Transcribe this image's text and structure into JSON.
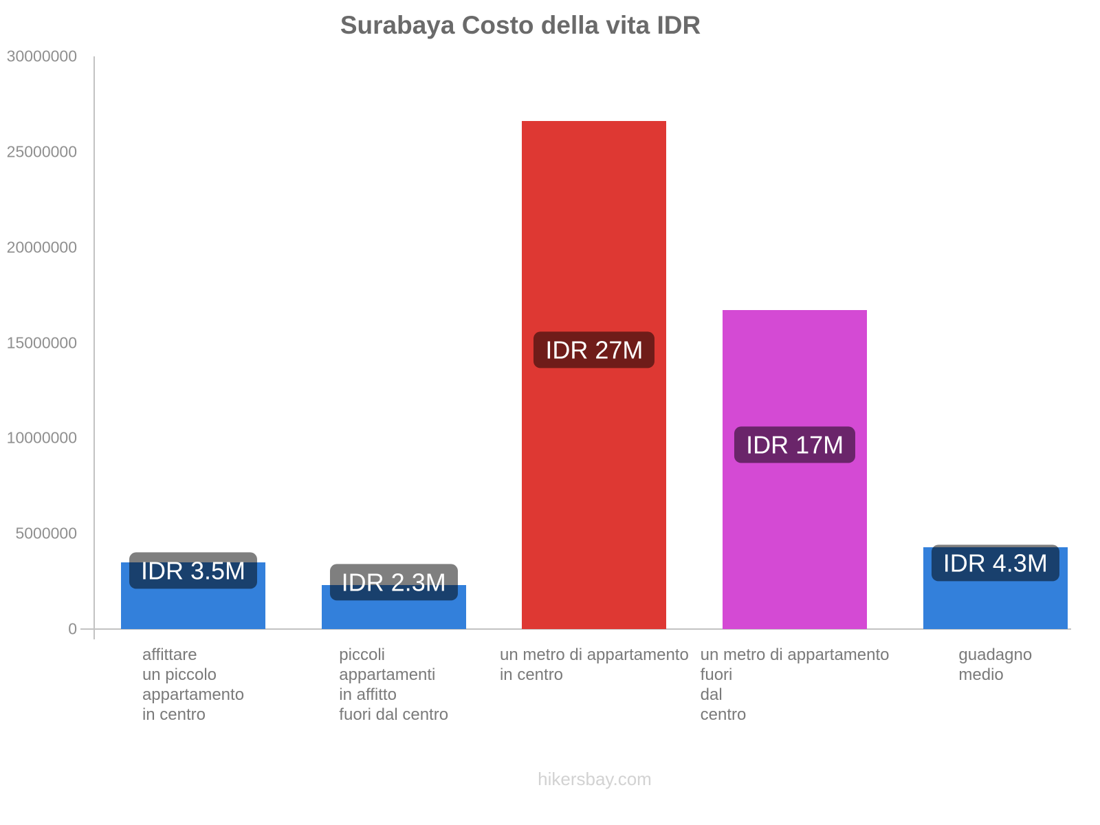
{
  "title": "Surabaya Costo della vita IDR",
  "footer": "hikersbay.com",
  "colors": {
    "blue_bar": "#3380DB",
    "red_bar": "#DE3833",
    "magenta_bar": "#D44AD4",
    "badge_bg": "rgba(0,0,0,0.5)",
    "badge_text": "#FFFFFF",
    "axis": "#C2C2C2",
    "y_tick_label": "#8F8F8F",
    "category_label": "#7A7A7A",
    "title_text": "#6A6A6A",
    "footer_text": "#D2D2D2"
  },
  "chart_data": {
    "type": "bar",
    "title": "Surabaya Costo della vita IDR",
    "xlabel": "",
    "ylabel": "",
    "ylim": [
      0,
      30000000
    ],
    "yticks": [
      0,
      5000000,
      10000000,
      15000000,
      20000000,
      25000000,
      30000000
    ],
    "ytick_labels": [
      "0",
      "5000000",
      "10000000",
      "15000000",
      "20000000",
      "25000000",
      "30000000"
    ],
    "grid": false,
    "legend": false,
    "currency": "IDR",
    "categories": [
      "affittare\nun piccolo\nappartamento\nin centro",
      "piccoli\nappartamenti\nin affitto\nfuori dal centro",
      "un metro di appartamento\nin centro",
      "un metro di appartamento\nfuori\ndal\ncentro",
      "guadagno\nmedio"
    ],
    "values": [
      3500000,
      2300000,
      26600000,
      16700000,
      4300000
    ],
    "bar_labels": [
      "IDR 3.5M",
      "IDR 2.3M",
      "IDR 27M",
      "IDR 17M",
      "IDR 4.3M"
    ],
    "bar_colors": [
      "#3380DB",
      "#3380DB",
      "#DE3833",
      "#D44AD4",
      "#3380DB"
    ]
  }
}
